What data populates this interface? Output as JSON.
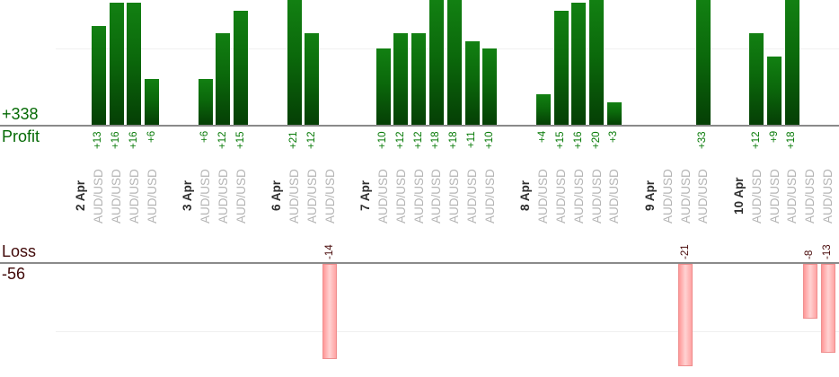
{
  "summary": {
    "profit_total": "+338",
    "profit_label": "Profit",
    "loss_label": "Loss",
    "loss_total": "-56"
  },
  "chart_data": {
    "type": "bar",
    "description": "Per-trade profit and loss bars grouped by day; profits plotted upward above the Profit axis, losses plotted downward below the Loss axis",
    "categories": [
      "2 Apr",
      "3 Apr",
      "6 Apr",
      "7 Apr",
      "8 Apr",
      "9 Apr",
      "10 Apr"
    ],
    "groups": [
      {
        "date": "2 Apr",
        "trades": [
          {
            "symbol": "AUD/USD",
            "value": 13
          },
          {
            "symbol": "AUD/USD",
            "value": 16
          },
          {
            "symbol": "AUD/USD",
            "value": 16
          },
          {
            "symbol": "AUD/USD",
            "value": 6
          }
        ]
      },
      {
        "date": "3 Apr",
        "trades": [
          {
            "symbol": "AUD/USD",
            "value": 6
          },
          {
            "symbol": "AUD/USD",
            "value": 12
          },
          {
            "symbol": "AUD/USD",
            "value": 15
          }
        ]
      },
      {
        "date": "6 Apr",
        "trades": [
          {
            "symbol": "AUD/USD",
            "value": 21
          },
          {
            "symbol": "AUD/USD",
            "value": 12
          },
          {
            "symbol": "AUD/USD",
            "value": -14
          }
        ]
      },
      {
        "date": "7 Apr",
        "trades": [
          {
            "symbol": "AUD/USD",
            "value": 10
          },
          {
            "symbol": "AUD/USD",
            "value": 12
          },
          {
            "symbol": "AUD/USD",
            "value": 12
          },
          {
            "symbol": "AUD/USD",
            "value": 18
          },
          {
            "symbol": "AUD/USD",
            "value": 18
          },
          {
            "symbol": "AUD/USD",
            "value": 11
          },
          {
            "symbol": "AUD/USD",
            "value": 10
          }
        ]
      },
      {
        "date": "8 Apr",
        "trades": [
          {
            "symbol": "AUD/USD",
            "value": 4
          },
          {
            "symbol": "AUD/USD",
            "value": 15
          },
          {
            "symbol": "AUD/USD",
            "value": 16
          },
          {
            "symbol": "AUD/USD",
            "value": 20
          },
          {
            "symbol": "AUD/USD",
            "value": 3
          }
        ]
      },
      {
        "date": "9 Apr",
        "trades": [
          {
            "symbol": "AUD/USD",
            "value": 0
          },
          {
            "symbol": "AUD/USD",
            "value": -21
          },
          {
            "symbol": "AUD/USD",
            "value": 33
          }
        ]
      },
      {
        "date": "10 Apr",
        "trades": [
          {
            "symbol": "AUD/USD",
            "value": 12
          },
          {
            "symbol": "AUD/USD",
            "value": 9
          },
          {
            "symbol": "AUD/USD",
            "value": 18
          },
          {
            "symbol": "AUD/USD",
            "value": -8
          },
          {
            "symbol": "AUD/USD",
            "value": -13
          }
        ]
      }
    ],
    "totals": {
      "profit": 338,
      "loss": -56
    },
    "layout": {
      "grid": true,
      "legend": "none",
      "bar_labels": "signed values rotated vertically",
      "profit_bars_clipped_at_top": true
    }
  },
  "colors": {
    "profit_text": "#056a05",
    "profit_value_label": "#077a07",
    "loss_text": "#400808",
    "profit_bar": "#0b690b",
    "loss_bar_fill": "#ffb7b7",
    "loss_bar_border": "#ef8f8f",
    "axis_line": "#8a8a8a",
    "gridline": "#f0f0f0",
    "date_label": "#2e2e2e",
    "symbol_label": "#b4b4b4"
  }
}
